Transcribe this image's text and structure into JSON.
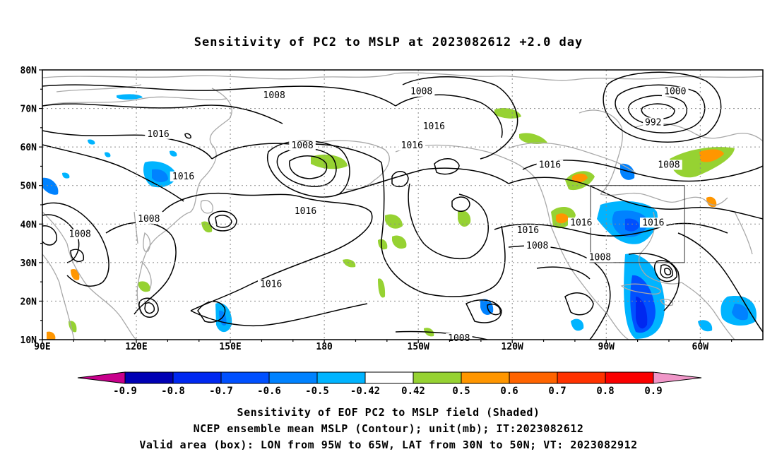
{
  "title": "Sensitivity of PC2 to MSLP at 2023082612 +2.0 day",
  "map": {
    "lat_labels": [
      "80N",
      "70N",
      "60N",
      "50N",
      "40N",
      "30N",
      "20N",
      "10N"
    ],
    "lon_labels": [
      "90E",
      "120E",
      "150E",
      "180",
      "150W",
      "120W",
      "90W",
      "60W"
    ],
    "lat_range": [
      10,
      80
    ],
    "lon_range_east_degrees": [
      90,
      320
    ],
    "contour_labels": [
      {
        "text": "1008",
        "lon": 164,
        "lat": 73
      },
      {
        "text": "1008",
        "lon": 211,
        "lat": 74
      },
      {
        "text": "1000",
        "lon": 292,
        "lat": 74
      },
      {
        "text": "992",
        "lon": 285,
        "lat": 66
      },
      {
        "text": "1016",
        "lon": 127,
        "lat": 63
      },
      {
        "text": "1016",
        "lon": 215,
        "lat": 65
      },
      {
        "text": "1016",
        "lon": 208,
        "lat": 60
      },
      {
        "text": "1008",
        "lon": 173,
        "lat": 60
      },
      {
        "text": "1016",
        "lon": 252,
        "lat": 55
      },
      {
        "text": "1008",
        "lon": 290,
        "lat": 55
      },
      {
        "text": "1016",
        "lon": 135,
        "lat": 52
      },
      {
        "text": "1016",
        "lon": 174,
        "lat": 43
      },
      {
        "text": "1008",
        "lon": 124,
        "lat": 41
      },
      {
        "text": "1008",
        "lon": 102,
        "lat": 37
      },
      {
        "text": "1016",
        "lon": 245,
        "lat": 38
      },
      {
        "text": "1016",
        "lon": 262,
        "lat": 40
      },
      {
        "text": "1016",
        "lon": 285,
        "lat": 40
      },
      {
        "text": "1008",
        "lon": 248,
        "lat": 34
      },
      {
        "text": "1008",
        "lon": 268,
        "lat": 31
      },
      {
        "text": "1016",
        "lon": 163,
        "lat": 24
      },
      {
        "text": "1008",
        "lon": 223,
        "lat": 10
      }
    ],
    "valid_box": {
      "lon_min": 265,
      "lon_max": 295,
      "lat_min": 30,
      "lat_max": 50
    }
  },
  "colorbar": {
    "labels": [
      "-0.9",
      "-0.8",
      "-0.7",
      "-0.6",
      "-0.5",
      "-0.42",
      "0.42",
      "0.5",
      "0.6",
      "0.7",
      "0.8",
      "0.9"
    ],
    "colors": [
      "#0000b4",
      "#0028f0",
      "#0050ff",
      "#0082ff",
      "#00b4ff",
      "#ffffff",
      "#96d232",
      "#ff9600",
      "#ff6400",
      "#ff3200",
      "#fa0000"
    ],
    "low_end_color": "#c8008c",
    "high_end_color": "#f096c8"
  },
  "captions": {
    "line1": "Sensitivity of EOF PC2 to MSLP field (Shaded)",
    "line2": "NCEP ensemble mean MSLP (Contour); unit(mb); IT:2023082612",
    "line3": "Valid area (box): LON from 95W to 65W, LAT from 30N to 50N; VT: 2023082912"
  }
}
